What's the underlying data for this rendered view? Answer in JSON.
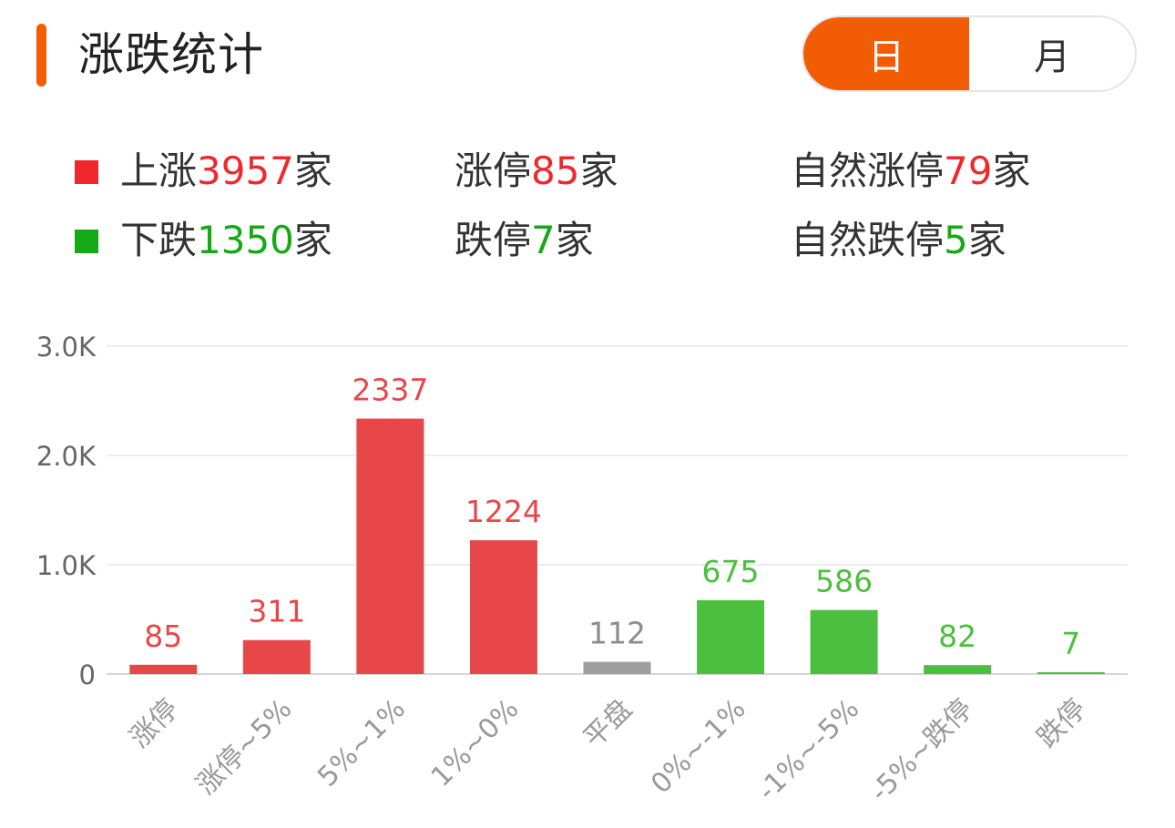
{
  "header": {
    "title": "涨跌统计",
    "toggle": {
      "day_label": "日",
      "month_label": "月",
      "selected": "日"
    }
  },
  "colors": {
    "accent": "#f25c05",
    "up": "#f0282d",
    "down": "#16a916",
    "up_bar": "#e8474a",
    "flat_bar": "#9e9e9e",
    "down_bar": "#4cbf3f"
  },
  "summary": {
    "up": {
      "pre": "上涨",
      "value": "3957",
      "suf": "家"
    },
    "limit_up": {
      "pre": "涨停",
      "value": "85",
      "suf": "家"
    },
    "natural_limit_up": {
      "pre": "自然涨停",
      "value": "79",
      "suf": "家"
    },
    "down": {
      "pre": "下跌",
      "value": "1350",
      "suf": "家"
    },
    "limit_down": {
      "pre": "跌停",
      "value": "7",
      "suf": "家"
    },
    "natural_limit_down": {
      "pre": "自然跌停",
      "value": "5",
      "suf": "家"
    }
  },
  "chart_data": {
    "type": "bar",
    "categories": [
      "涨停",
      "涨停~5%",
      "5%~1%",
      "1%~0%",
      "平盘",
      "0%~-1%",
      "-1%~-5%",
      "-5%~跌停",
      "跌停"
    ],
    "values": [
      85,
      311,
      2337,
      1224,
      112,
      675,
      586,
      82,
      7
    ],
    "bar_colors": [
      "#e8474a",
      "#e8474a",
      "#e8474a",
      "#e8474a",
      "#9e9e9e",
      "#4cbf3f",
      "#4cbf3f",
      "#4cbf3f",
      "#4cbf3f"
    ],
    "label_colors": [
      "#e8474a",
      "#e8474a",
      "#e8474a",
      "#e8474a",
      "#8c8c8c",
      "#4cbf3f",
      "#4cbf3f",
      "#4cbf3f",
      "#4cbf3f"
    ],
    "yticks": [
      "0",
      "1.0K",
      "2.0K",
      "3.0K"
    ],
    "ytick_values": [
      0,
      1000,
      2000,
      3000
    ],
    "ylim": [
      0,
      3000
    ],
    "grid": true
  }
}
